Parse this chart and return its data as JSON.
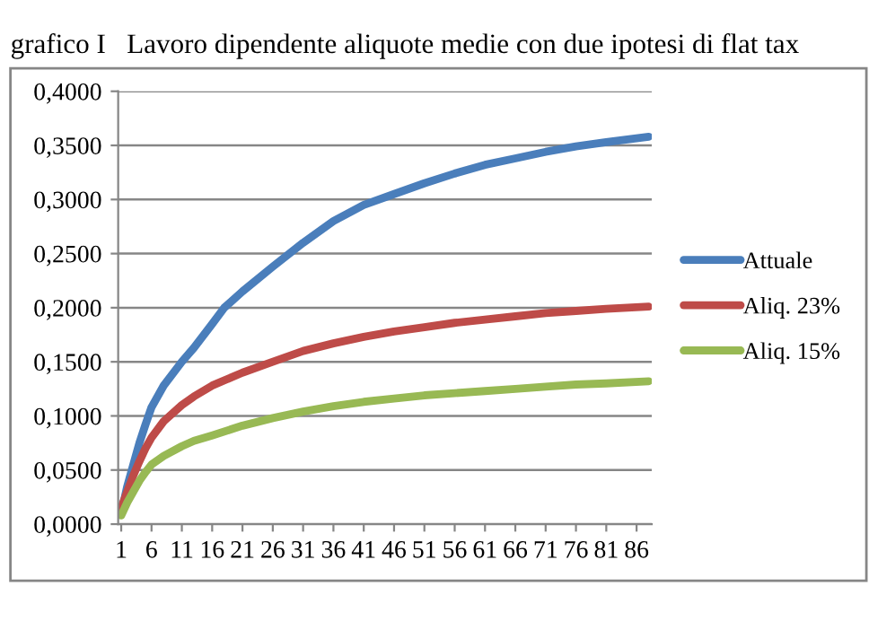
{
  "chart_data": {
    "type": "line",
    "title": "grafico I   Lavoro dipendente aliquote medie con due ipotesi di flat tax",
    "xlim": [
      0.5,
      88.5
    ],
    "xticks": [
      1,
      6,
      11,
      16,
      21,
      26,
      31,
      36,
      41,
      46,
      51,
      56,
      61,
      66,
      71,
      76,
      81,
      86
    ],
    "ylim": [
      0,
      0.4
    ],
    "yticks": [
      {
        "value": 0,
        "label": "0,0000"
      },
      {
        "value": 0.05,
        "label": "0,0500"
      },
      {
        "value": 0.1,
        "label": "0,1000"
      },
      {
        "value": 0.15,
        "label": "0,1500"
      },
      {
        "value": 0.2,
        "label": "0,2000"
      },
      {
        "value": 0.25,
        "label": "0,2500"
      },
      {
        "value": 0.3,
        "label": "0,3000"
      },
      {
        "value": 0.35,
        "label": "0,3500"
      },
      {
        "value": 0.4,
        "label": "0,4000"
      }
    ],
    "grid": "y",
    "legend": "right",
    "marker": "none",
    "line_style": "solid",
    "series": [
      {
        "name": "Attuale",
        "color": "#4a7ebb",
        "x": [
          1,
          2,
          3,
          4,
          5,
          6,
          8,
          11,
          13,
          16,
          18,
          21,
          26,
          31,
          36,
          41,
          46,
          51,
          56,
          61,
          66,
          71,
          76,
          81,
          88
        ],
        "values": [
          0.01,
          0.035,
          0.055,
          0.075,
          0.092,
          0.108,
          0.128,
          0.15,
          0.163,
          0.185,
          0.2,
          0.215,
          0.238,
          0.26,
          0.28,
          0.295,
          0.305,
          0.315,
          0.324,
          0.332,
          0.338,
          0.344,
          0.349,
          0.353,
          0.358
        ]
      },
      {
        "name": "Aliq. 23%",
        "color": "#be4b48",
        "x": [
          1,
          2,
          3,
          4,
          5,
          6,
          8,
          11,
          13,
          16,
          21,
          26,
          31,
          36,
          41,
          46,
          51,
          56,
          61,
          66,
          71,
          76,
          81,
          88
        ],
        "values": [
          0.015,
          0.03,
          0.045,
          0.058,
          0.07,
          0.08,
          0.095,
          0.11,
          0.118,
          0.128,
          0.14,
          0.15,
          0.16,
          0.167,
          0.173,
          0.178,
          0.182,
          0.186,
          0.189,
          0.192,
          0.195,
          0.197,
          0.199,
          0.201
        ]
      },
      {
        "name": "Aliq. 15%",
        "color": "#98b954",
        "x": [
          1,
          2,
          3,
          4,
          5,
          6,
          8,
          11,
          13,
          16,
          21,
          26,
          31,
          36,
          41,
          46,
          51,
          56,
          61,
          66,
          71,
          76,
          81,
          88
        ],
        "values": [
          0.008,
          0.02,
          0.03,
          0.04,
          0.048,
          0.055,
          0.063,
          0.072,
          0.077,
          0.082,
          0.091,
          0.098,
          0.104,
          0.109,
          0.113,
          0.116,
          0.119,
          0.121,
          0.123,
          0.125,
          0.127,
          0.129,
          0.13,
          0.132
        ]
      }
    ]
  }
}
